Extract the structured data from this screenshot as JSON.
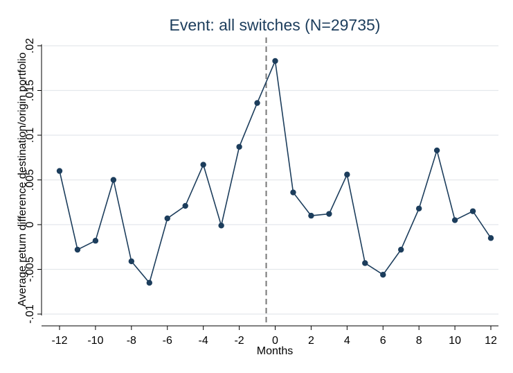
{
  "chart_data": {
    "type": "line",
    "title": "Event: all switches (N=29735)",
    "xlabel": "Months",
    "ylabel": "Average return difference destination/origin portfolio",
    "xlim": [
      -12,
      12
    ],
    "ylim": [
      -0.01,
      0.02
    ],
    "x_ticks": [
      -12,
      -10,
      -8,
      -6,
      -4,
      -2,
      0,
      2,
      4,
      6,
      8,
      10,
      12
    ],
    "x_tick_labels": [
      "-12",
      "-10",
      "-8",
      "-6",
      "-4",
      "-2",
      "0",
      "2",
      "4",
      "6",
      "8",
      "10",
      "12"
    ],
    "y_ticks": [
      -0.01,
      -0.005,
      0,
      0.005,
      0.01,
      0.015,
      0.02
    ],
    "y_tick_labels": [
      "-.01",
      "-.005",
      "0",
      ".005",
      ".01",
      ".015",
      ".02"
    ],
    "grid": true,
    "reference_line": {
      "x": -0.5,
      "style": "dashed"
    },
    "colors": {
      "series": "#1c3d5c",
      "grid": "#e4e8ec",
      "reference": "#777777",
      "axis": "#000000"
    },
    "series": [
      {
        "x": [
          -12,
          -11,
          -10,
          -9,
          -8,
          -7,
          -6,
          -5,
          -4,
          -3,
          -2,
          -1,
          0,
          1,
          2,
          3,
          4,
          5,
          6,
          7,
          8,
          9,
          10,
          11,
          12
        ],
        "values": [
          0.006,
          -0.0028,
          -0.0018,
          0.005,
          -0.0041,
          -0.0065,
          0.0007,
          0.0021,
          0.0067,
          -0.0001,
          0.0087,
          0.0136,
          0.0183,
          0.0036,
          0.001,
          0.0012,
          0.0056,
          -0.0043,
          -0.0056,
          -0.0028,
          0.0018,
          0.0083,
          0.0005,
          0.0015,
          -0.0015
        ]
      }
    ]
  }
}
